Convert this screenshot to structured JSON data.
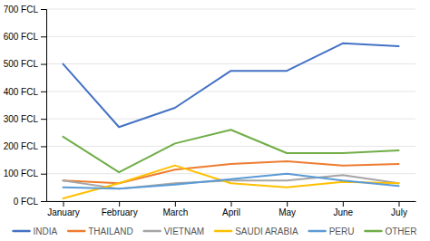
{
  "chart_data": {
    "type": "line",
    "categories": [
      "January",
      "February",
      "March",
      "April",
      "May",
      "June",
      "July"
    ],
    "series": [
      {
        "name": "INDIA",
        "color": "#4472c4",
        "values": [
          500,
          270,
          340,
          475,
          475,
          575,
          565
        ]
      },
      {
        "name": "THAILAND",
        "color": "#ed7d31",
        "values": [
          75,
          65,
          115,
          135,
          145,
          130,
          135
        ]
      },
      {
        "name": "VIETNAM",
        "color": "#a5a5a5",
        "values": [
          75,
          45,
          65,
          75,
          75,
          95,
          65
        ]
      },
      {
        "name": "SAUDI ARABIA",
        "color": "#ffc000",
        "values": [
          10,
          65,
          130,
          65,
          50,
          70,
          65
        ]
      },
      {
        "name": "PERU",
        "color": "#5b9bd5",
        "values": [
          50,
          45,
          60,
          80,
          100,
          75,
          55
        ]
      },
      {
        "name": "OTHER",
        "color": "#70ad47",
        "values": [
          235,
          105,
          210,
          260,
          175,
          175,
          185
        ]
      }
    ],
    "ylim": [
      0,
      700
    ],
    "yticks": [
      {
        "value": 0,
        "label": "0 FCL"
      },
      {
        "value": 100,
        "label": "100 FCL"
      },
      {
        "value": 200,
        "label": "200 FCL"
      },
      {
        "value": 300,
        "label": "300 FCL"
      },
      {
        "value": 400,
        "label": "400 FCL"
      },
      {
        "value": 500,
        "label": "500 FCL"
      },
      {
        "value": 600,
        "label": "600 FCL"
      },
      {
        "value": 700,
        "label": "700 FCL"
      }
    ],
    "grid": true,
    "legend": "bottom"
  }
}
